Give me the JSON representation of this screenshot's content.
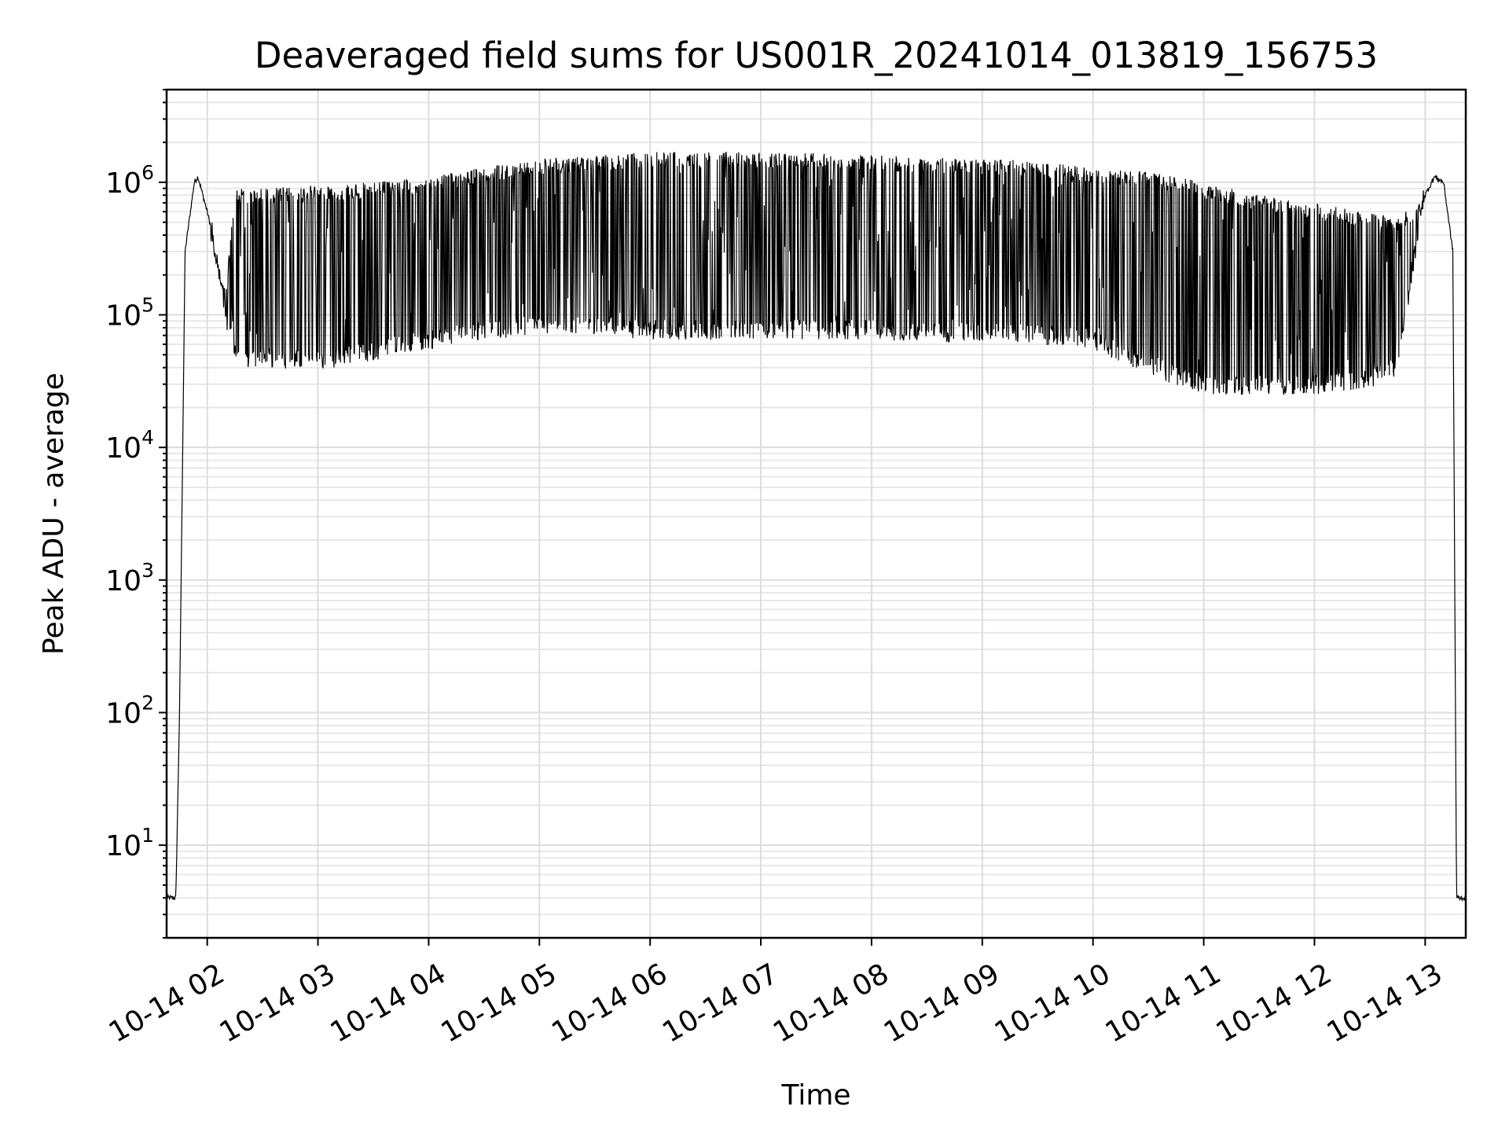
{
  "chart_data": {
    "type": "line",
    "title": "Deaveraged field sums for US001R_20241014_013819_156753",
    "xlabel": "Time",
    "ylabel": "Peak ADU - average",
    "yscale": "log",
    "ylim": [
      2,
      5000000
    ],
    "xlim": [
      "2024-10-14T01:38:00",
      "2024-10-14T13:22:00"
    ],
    "grid": "on",
    "line_color": "#000000",
    "x_ticks": [
      "10-14 02",
      "10-14 03",
      "10-14 04",
      "10-14 05",
      "10-14 06",
      "10-14 07",
      "10-14 08",
      "10-14 09",
      "10-14 10",
      "10-14 11",
      "10-14 12",
      "10-14 13"
    ],
    "y_ticks": [
      {
        "base": "10",
        "exp": "1",
        "value": 10
      },
      {
        "base": "10",
        "exp": "2",
        "value": 100
      },
      {
        "base": "10",
        "exp": "3",
        "value": 1000
      },
      {
        "base": "10",
        "exp": "4",
        "value": 10000
      },
      {
        "base": "10",
        "exp": "5",
        "value": 100000
      },
      {
        "base": "10",
        "exp": "6",
        "value": 1000000
      }
    ],
    "series": [
      {
        "style": "rapid oscillation between the envelopes",
        "x": [
          "2024-10-14T01:38",
          "2024-10-14T01:43",
          "2024-10-14T01:45",
          "2024-10-14T01:48",
          "2024-10-14T01:53",
          "2024-10-14T01:55",
          "2024-10-14T02:00",
          "2024-10-14T02:10",
          "2024-10-14T02:15",
          "2024-10-14T02:20",
          "2024-10-14T02:30",
          "2024-10-14T03:00",
          "2024-10-14T03:30",
          "2024-10-14T04:00",
          "2024-10-14T04:30",
          "2024-10-14T05:00",
          "2024-10-14T05:30",
          "2024-10-14T06:00",
          "2024-10-14T06:30",
          "2024-10-14T07:00",
          "2024-10-14T07:30",
          "2024-10-14T08:00",
          "2024-10-14T08:30",
          "2024-10-14T09:00",
          "2024-10-14T09:30",
          "2024-10-14T10:00",
          "2024-10-14T10:30",
          "2024-10-14T11:00",
          "2024-10-14T11:30",
          "2024-10-14T12:00",
          "2024-10-14T12:30",
          "2024-10-14T12:45",
          "2024-10-14T13:00",
          "2024-10-14T13:05",
          "2024-10-14T13:10",
          "2024-10-14T13:15",
          "2024-10-14T13:17",
          "2024-10-14T13:22"
        ],
        "y_upper": [
          4,
          4,
          100,
          300000,
          1000000,
          1100000,
          600000,
          150000,
          900000,
          900000,
          900000,
          950000,
          1000000,
          1100000,
          1300000,
          1500000,
          1600000,
          1700000,
          1700000,
          1700000,
          1700000,
          1600000,
          1550000,
          1500000,
          1450000,
          1300000,
          1200000,
          1000000,
          800000,
          700000,
          600000,
          550000,
          800000,
          1100000,
          1000000,
          300000,
          4,
          4
        ],
        "y_lower": [
          4,
          4,
          100,
          300000,
          1000000,
          1100000,
          600000,
          80000,
          45000,
          40000,
          40000,
          38000,
          45000,
          55000,
          65000,
          70000,
          70000,
          65000,
          65000,
          65000,
          65000,
          65000,
          62000,
          62000,
          60000,
          55000,
          35000,
          25000,
          25000,
          25000,
          28000,
          35000,
          800000,
          1100000,
          1000000,
          300000,
          4,
          4
        ]
      }
    ]
  }
}
